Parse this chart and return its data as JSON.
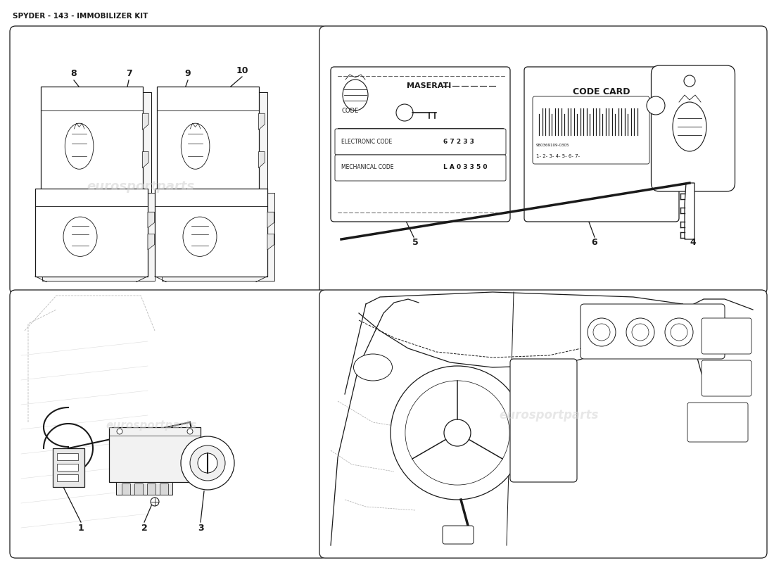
{
  "title": "SPYDER - 143 - IMMOBILIZER KIT",
  "bg_color": "#ffffff",
  "line_color": "#1a1a1a",
  "gray_line": "#888888",
  "light_gray": "#cccccc",
  "maserati_card": {
    "title": "MASERATI",
    "code_label": "CODE",
    "electronic_label": "ELECTRONIC CODE",
    "electronic_value": "6 7 2 3 3",
    "mechanical_label": "MECHANICAL CODE",
    "mechanical_value": "L A 0 3 3 5 0"
  },
  "code_card": {
    "title": "CODE CARD",
    "barcode_sub": "980369109-0305",
    "barcode_text": "1- 2- 3- 4- 5- 6- 7-"
  },
  "labels": [
    "1",
    "2",
    "3",
    "4",
    "5",
    "6",
    "7",
    "8",
    "9",
    "10"
  ],
  "watermark": "eurosportparts"
}
